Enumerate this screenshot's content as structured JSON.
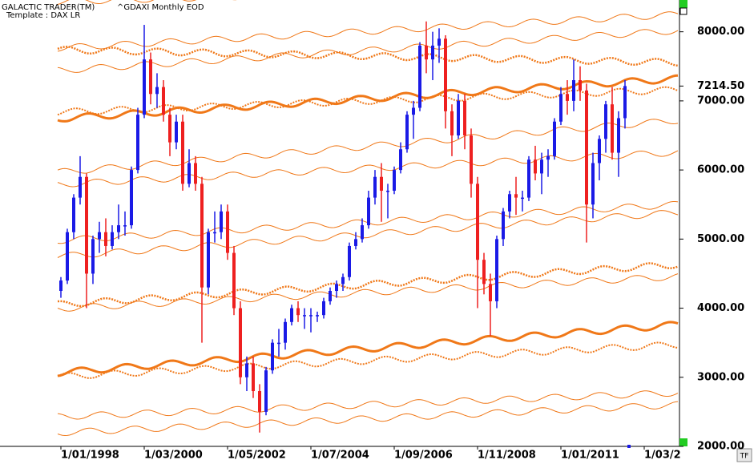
{
  "chart_data": {
    "type": "candlestick",
    "app_title": "GALACTIC TRADER(TM)",
    "title": "^GDAXI Monthly EOD",
    "template": "Template : DAX LR",
    "tf_button": "TF",
    "up_color": "#1a1ae6",
    "down_color": "#ee2020",
    "xlim": [
      "1996-06-01",
      "2014-02-01"
    ],
    "ylim": [
      2000,
      8460
    ],
    "xticks": [
      {
        "value": "1998-01-01",
        "label": "1/01/1998"
      },
      {
        "value": "2000-03-01",
        "label": "1/03/2000"
      },
      {
        "value": "2002-05-01",
        "label": "1/05/2002"
      },
      {
        "value": "2004-07-01",
        "label": "1/07/2004"
      },
      {
        "value": "2006-09-01",
        "label": "1/09/2006"
      },
      {
        "value": "2008-11-01",
        "label": "1/11/2008"
      },
      {
        "value": "2011-01-01",
        "label": "1/01/2011"
      },
      {
        "value": "2013-03-01",
        "label": "1/03/2"
      }
    ],
    "yticks": [
      {
        "value": 2000,
        "label": "2000.00"
      },
      {
        "value": 3000,
        "label": "3000.00"
      },
      {
        "value": 4000,
        "label": "4000.00"
      },
      {
        "value": 5000,
        "label": "5000.00"
      },
      {
        "value": 6000,
        "label": "6000.00"
      },
      {
        "value": 7000,
        "label": "7000.00"
      },
      {
        "value": 8000,
        "label": "8000.00"
      }
    ],
    "last_price": {
      "value": 7214.5,
      "label": "7214.50"
    },
    "x": [
      "1998-01-01",
      "1998-03-01",
      "1998-05-01",
      "1998-07-01",
      "1998-09-01",
      "1998-11-01",
      "1999-01-01",
      "1999-03-01",
      "1999-05-01",
      "1999-07-01",
      "1999-09-01",
      "1999-11-01",
      "2000-01-01",
      "2000-03-01",
      "2000-05-01",
      "2000-07-01",
      "2000-09-01",
      "2000-11-01",
      "2001-01-01",
      "2001-03-01",
      "2001-05-01",
      "2001-07-01",
      "2001-09-01",
      "2001-11-01",
      "2002-01-01",
      "2002-03-01",
      "2002-05-01",
      "2002-07-01",
      "2002-09-01",
      "2002-11-01",
      "2003-01-01",
      "2003-03-01",
      "2003-05-01",
      "2003-07-01",
      "2003-09-01",
      "2003-11-01",
      "2004-01-01",
      "2004-03-01",
      "2004-05-01",
      "2004-07-01",
      "2004-09-01",
      "2004-11-01",
      "2005-01-01",
      "2005-03-01",
      "2005-05-01",
      "2005-07-01",
      "2005-09-01",
      "2005-11-01",
      "2006-01-01",
      "2006-03-01",
      "2006-05-01",
      "2006-07-01",
      "2006-09-01",
      "2006-11-01",
      "2007-01-01",
      "2007-03-01",
      "2007-05-01",
      "2007-07-01",
      "2007-09-01",
      "2007-11-01",
      "2008-01-01",
      "2008-03-01",
      "2008-05-01",
      "2008-07-01",
      "2008-09-01",
      "2008-11-01",
      "2009-01-01",
      "2009-03-01",
      "2009-05-01",
      "2009-07-01",
      "2009-09-01",
      "2009-11-01",
      "2010-01-01",
      "2010-03-01",
      "2010-05-01",
      "2010-07-01",
      "2010-09-01",
      "2010-11-01",
      "2011-01-01",
      "2011-03-01",
      "2011-05-01",
      "2011-07-01",
      "2011-09-01",
      "2011-11-01",
      "2012-01-01",
      "2012-03-01",
      "2012-05-01",
      "2012-07-01",
      "2012-09-01"
    ],
    "open": [
      4250,
      4400,
      5100,
      5600,
      5900,
      4500,
      5000,
      5100,
      4900,
      5100,
      5200,
      5200,
      6000,
      6800,
      7600,
      7100,
      7200,
      6800,
      6400,
      6700,
      5800,
      6100,
      5800,
      4300,
      5100,
      5100,
      5400,
      4800,
      4000,
      3000,
      3200,
      2800,
      2500,
      3100,
      3500,
      3500,
      3800,
      4000,
      3900,
      3900,
      3900,
      3900,
      4100,
      4250,
      4350,
      4450,
      4900,
      5000,
      5200,
      5600,
      5900,
      5700,
      5700,
      6000,
      6300,
      6800,
      6900,
      7800,
      7600,
      7800,
      7900,
      6850,
      6500,
      7000,
      6500,
      5800,
      4700,
      4350,
      4100,
      5000,
      5400,
      5650,
      5600,
      5600,
      6150,
      5950,
      6150,
      6200,
      6700,
      7100,
      7000,
      7300,
      7150,
      5500,
      6100,
      6450,
      6950,
      6250,
      6750
    ],
    "high": [
      4450,
      5150,
      5650,
      6200,
      5950,
      5050,
      5250,
      5300,
      5200,
      5500,
      5400,
      6050,
      6900,
      8100,
      7700,
      7400,
      7300,
      6900,
      6800,
      6800,
      6300,
      6200,
      5900,
      5150,
      5400,
      5500,
      5500,
      4900,
      4100,
      3300,
      3300,
      2900,
      3150,
      3550,
      3700,
      3850,
      4050,
      4100,
      4000,
      4000,
      3950,
      4150,
      4300,
      4400,
      4500,
      4950,
      5100,
      5300,
      5700,
      6000,
      6100,
      5800,
      6050,
      6400,
      6850,
      7000,
      7850,
      8150,
      8000,
      8050,
      7950,
      6950,
      7100,
      7100,
      6600,
      5900,
      4800,
      4500,
      5050,
      5450,
      5700,
      5900,
      5700,
      6200,
      6350,
      6250,
      6300,
      6750,
      7200,
      7300,
      7600,
      7500,
      7250,
      6250,
      6500,
      7000,
      7200,
      6850,
      7300
    ],
    "low": [
      4150,
      4350,
      5000,
      5500,
      4000,
      4350,
      4800,
      4750,
      4850,
      5000,
      5050,
      5150,
      5950,
      6750,
      6950,
      6900,
      6700,
      6200,
      6300,
      5700,
      5750,
      5700,
      3500,
      4200,
      4950,
      5000,
      4700,
      3900,
      2900,
      2800,
      2700,
      2200,
      2450,
      3050,
      3300,
      3400,
      3750,
      3800,
      3700,
      3650,
      3800,
      3850,
      4050,
      4150,
      4250,
      4400,
      4850,
      4950,
      5150,
      5500,
      5250,
      5300,
      5650,
      5950,
      6250,
      6450,
      6850,
      7400,
      7300,
      7550,
      6600,
      6200,
      6450,
      6300,
      5600,
      4000,
      4200,
      3600,
      4000,
      4900,
      5300,
      5350,
      5400,
      5550,
      5850,
      5650,
      5900,
      6150,
      6650,
      6800,
      6850,
      7000,
      4950,
      5300,
      5850,
      6250,
      6150,
      5900,
      6600
    ],
    "close": [
      4400,
      5100,
      5600,
      5900,
      4500,
      5000,
      5100,
      4900,
      5100,
      5200,
      5200,
      6000,
      6800,
      7600,
      7100,
      7200,
      6800,
      6400,
      6700,
      5800,
      6100,
      5800,
      4300,
      5100,
      5100,
      5400,
      4800,
      4000,
      3000,
      3200,
      2800,
      2500,
      3100,
      3500,
      3500,
      3800,
      4000,
      3900,
      3900,
      3900,
      3900,
      4100,
      4250,
      4350,
      4450,
      4900,
      5000,
      5200,
      5600,
      5900,
      5700,
      5700,
      6000,
      6300,
      6800,
      6900,
      7800,
      7600,
      7800,
      7900,
      6850,
      6500,
      7000,
      6500,
      5800,
      4700,
      4350,
      4100,
      5000,
      5400,
      5650,
      5600,
      5600,
      6150,
      5950,
      6150,
      6200,
      6700,
      7100,
      7000,
      7300,
      7150,
      5500,
      6100,
      6450,
      6950,
      6250,
      6750,
      7214.5
    ]
  }
}
